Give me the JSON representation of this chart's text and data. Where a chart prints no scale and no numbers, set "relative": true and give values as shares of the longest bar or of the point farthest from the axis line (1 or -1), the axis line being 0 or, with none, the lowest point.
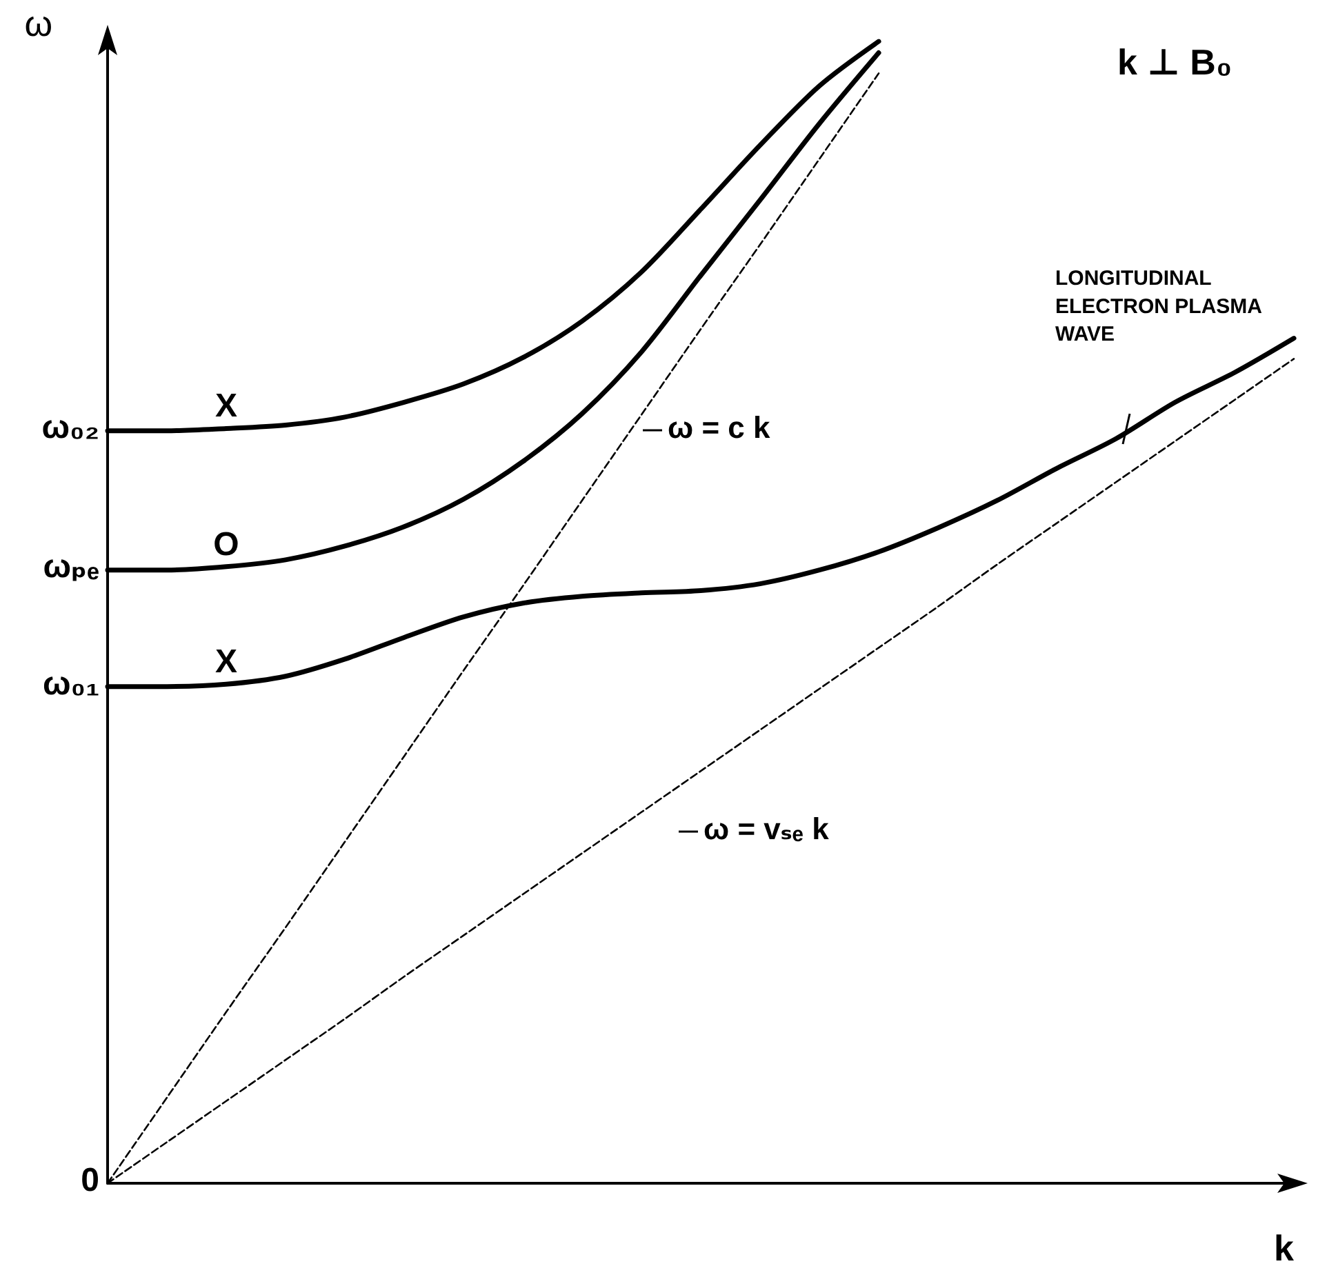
{
  "chart_data": {
    "type": "line",
    "relative": true,
    "xlabel": "k",
    "ylabel": "ω",
    "categories": [
      null,
      null,
      null,
      null,
      null,
      null,
      null,
      null,
      null,
      null,
      null,
      null,
      null,
      null,
      null,
      null,
      null,
      null,
      null,
      null,
      null
    ],
    "grid": false,
    "legend": false,
    "marker": "none",
    "series": [
      {
        "name": "X",
        "color": "#000000",
        "values": [
          0.659,
          0.659,
          0.661,
          0.664,
          0.671,
          0.684,
          0.7,
          0.723,
          0.755,
          0.798,
          0.853,
          0.909,
          0.961,
          1.0,
          null,
          null,
          null,
          null,
          null,
          null,
          null
        ]
      },
      {
        "name": "O",
        "color": "#000000",
        "values": [
          0.537,
          0.537,
          0.54,
          0.546,
          0.558,
          0.575,
          0.599,
          0.632,
          0.674,
          0.728,
          0.795,
          0.861,
          0.928,
          0.99,
          null,
          null,
          null,
          null,
          null,
          null,
          null
        ]
      },
      {
        "name": "X",
        "color": "#000000",
        "values": [
          0.435,
          0.435,
          0.437,
          0.444,
          0.459,
          0.478,
          0.496,
          0.508,
          0.514,
          0.517,
          0.519,
          0.525,
          0.537,
          0.553,
          0.574,
          0.598,
          0.626,
          0.652,
          0.684,
          0.71,
          0.74
        ]
      },
      {
        "color": "#000000",
        "line_style": "dashed",
        "values": [
          0,
          0.075,
          0.15,
          0.224,
          0.299,
          0.374,
          0.449,
          0.523,
          0.598,
          0.673,
          0.748,
          0.822,
          0.897,
          0.972,
          null,
          null,
          null,
          null,
          null,
          null,
          null
        ]
      },
      {
        "color": "#000000",
        "line_style": "dashed",
        "values": [
          0,
          0.036,
          0.072,
          0.108,
          0.144,
          0.181,
          0.217,
          0.253,
          0.289,
          0.325,
          0.361,
          0.397,
          0.433,
          0.469,
          0.505,
          0.542,
          0.578,
          0.614,
          0.65,
          0.686,
          0.722
        ]
      }
    ],
    "annotations": [
      "k ⊥ B₀",
      "LONGITUDINAL ELECTRON PLASMA WAVE",
      "ω = c k",
      "ω = vₛₑ k",
      "0",
      "ω₀₁",
      "ωₚₑ",
      "ω₀₂"
    ]
  }
}
